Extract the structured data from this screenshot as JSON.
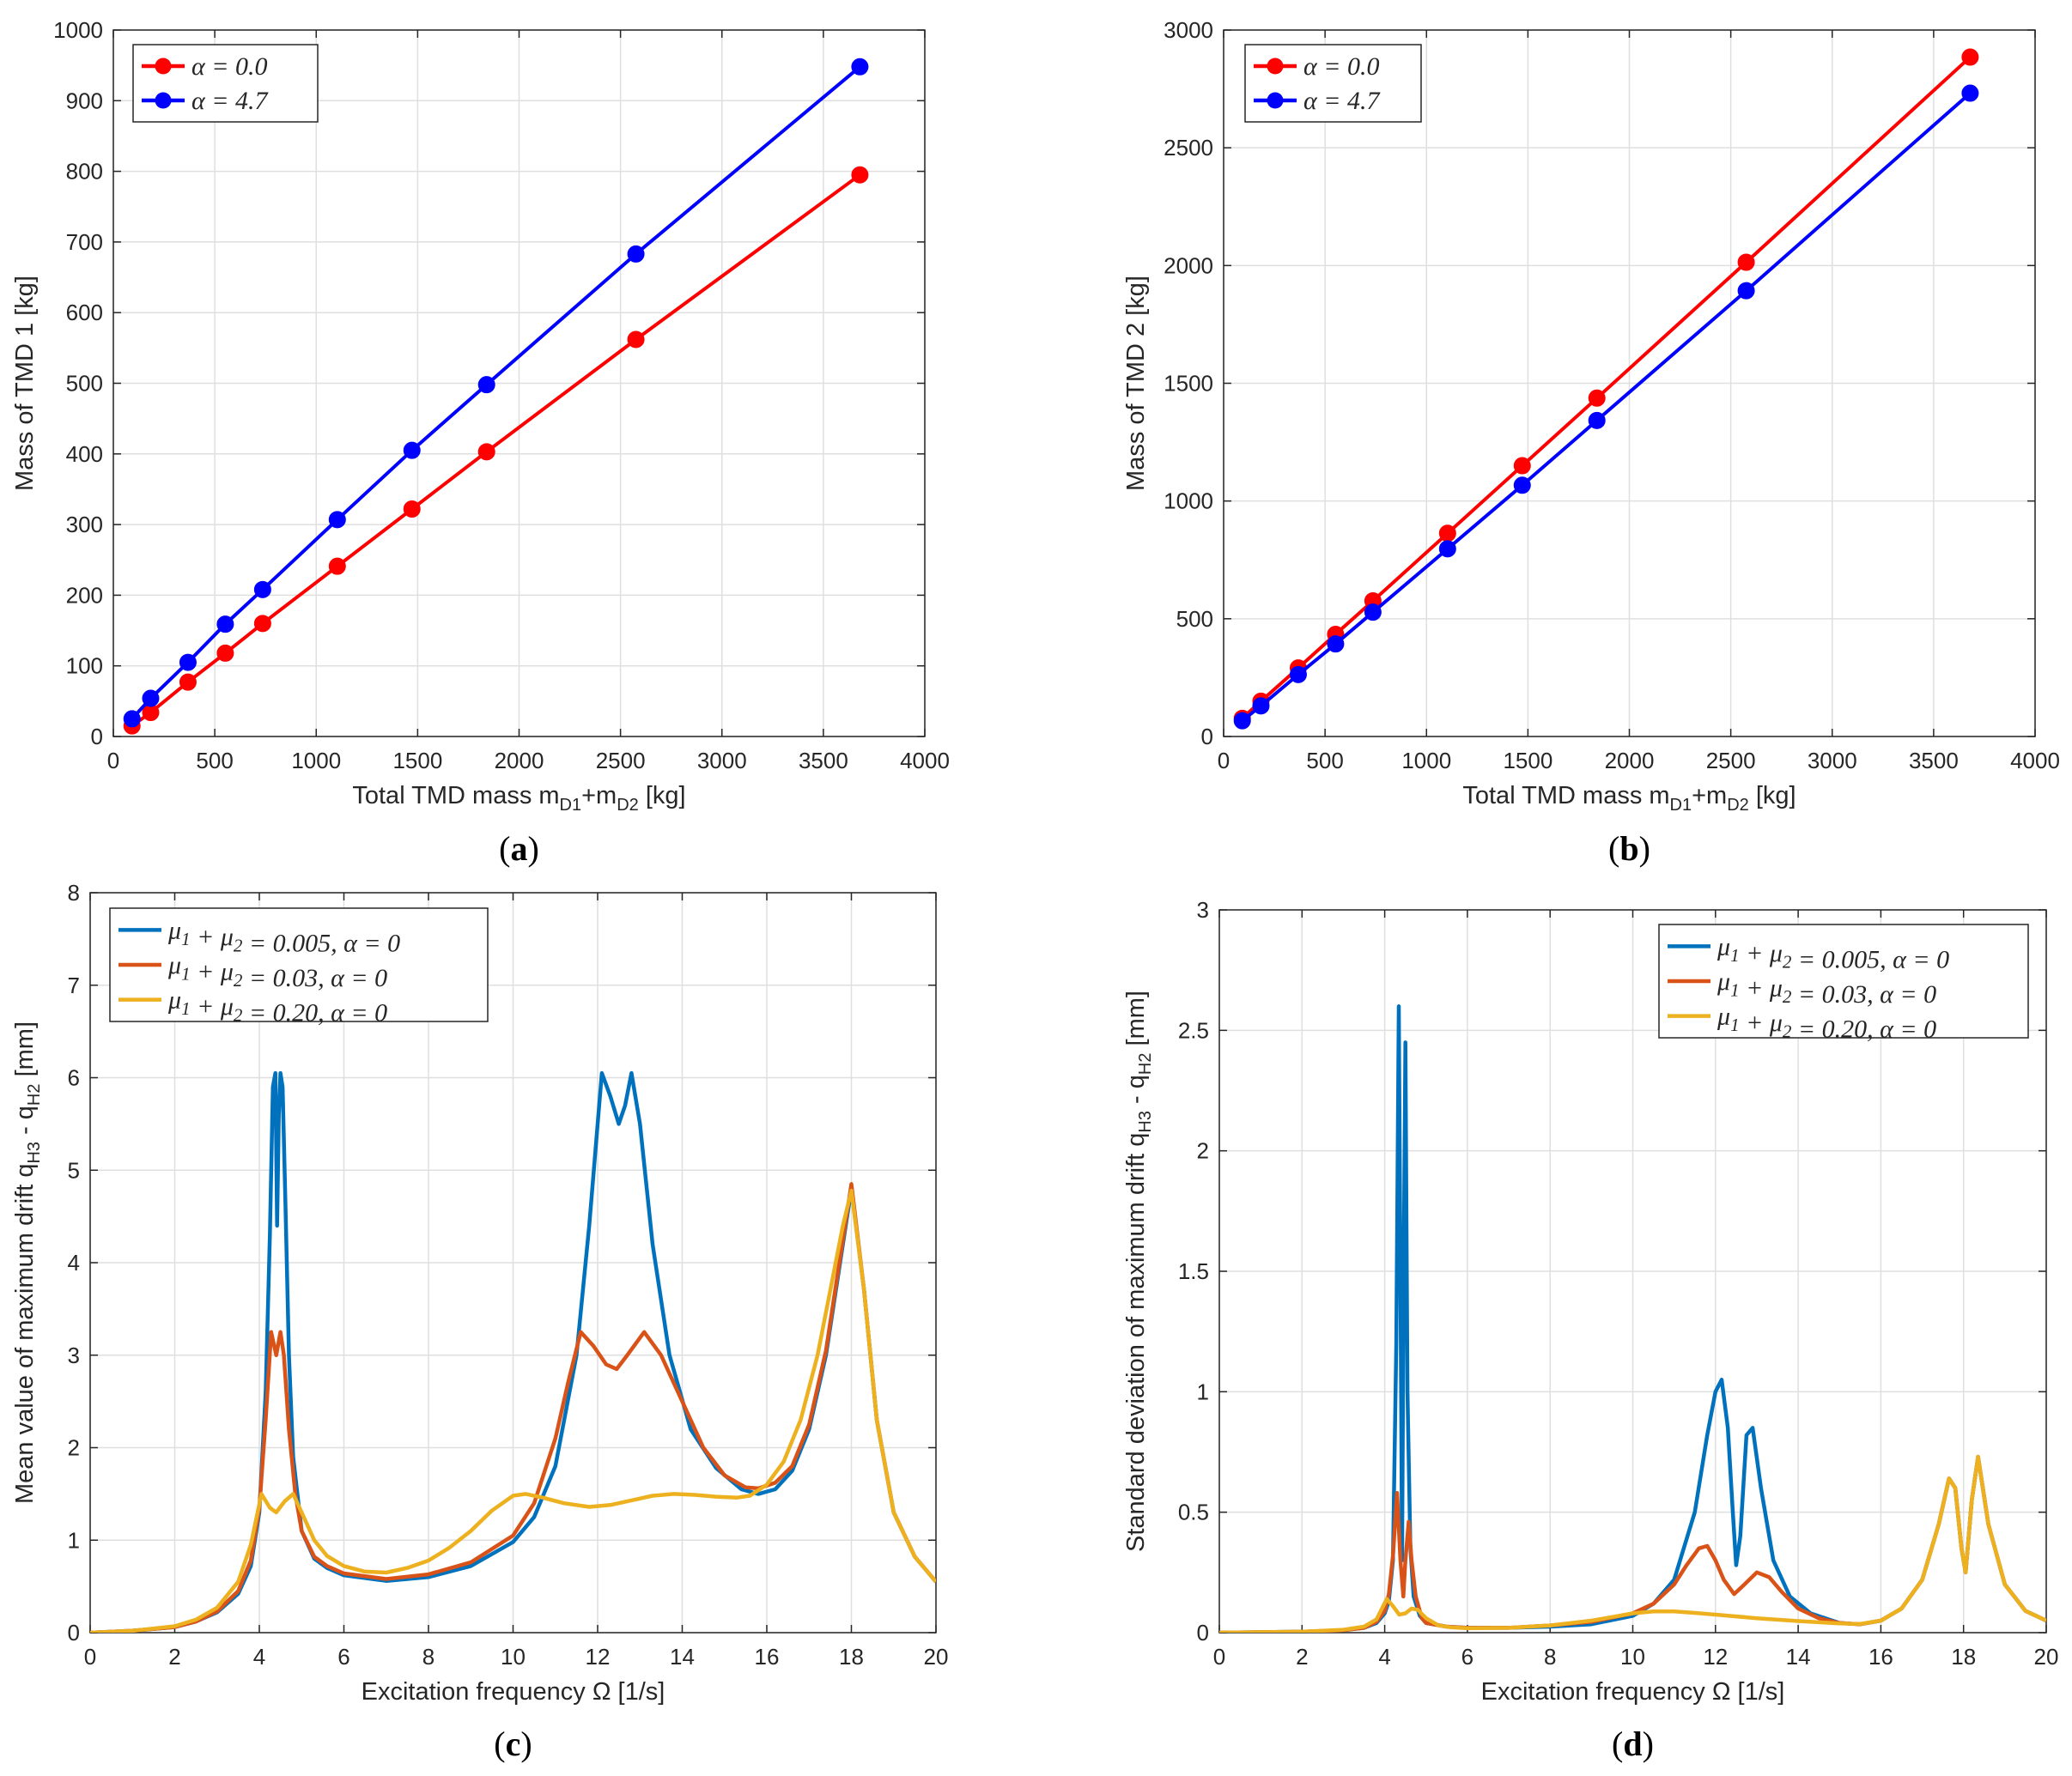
{
  "chart_data": [
    {
      "id": "a",
      "type": "line",
      "caption": "(a)",
      "xlabel": "Total TMD mass m",
      "xlabel_sub1": "D1",
      "xlabel_plus": "+m",
      "xlabel_sub2": "D2",
      "xlabel_unit": " [kg]",
      "ylabel": "Mass of TMD 1 [kg]",
      "xlim": [
        0,
        4000
      ],
      "ylim": [
        0,
        1000
      ],
      "xticks": [
        0,
        500,
        1000,
        1500,
        2000,
        2500,
        3000,
        3500,
        4000
      ],
      "yticks": [
        0,
        100,
        200,
        300,
        400,
        500,
        600,
        700,
        800,
        900,
        1000
      ],
      "grid": true,
      "legend": "top-left",
      "series": [
        {
          "name": "α = 0.0",
          "color": "#ff0000",
          "x": [
            92,
            184,
            368,
            552,
            736,
            1104,
            1472,
            1840,
            2576,
            3680
          ],
          "y": [
            15,
            34,
            77,
            118,
            160,
            241,
            322,
            403,
            562,
            795
          ]
        },
        {
          "name": "α = 4.7",
          "color": "#0000ff",
          "x": [
            92,
            184,
            368,
            552,
            736,
            1104,
            1472,
            1840,
            2576,
            3680
          ],
          "y": [
            25,
            54,
            105,
            159,
            208,
            307,
            405,
            498,
            683,
            948
          ]
        }
      ]
    },
    {
      "id": "b",
      "type": "line",
      "caption": "(b)",
      "xlabel": "Total TMD mass m",
      "xlabel_sub1": "D1",
      "xlabel_plus": "+m",
      "xlabel_sub2": "D2",
      "xlabel_unit": " [kg]",
      "ylabel": "Mass of TMD 2 [kg]",
      "xlim": [
        0,
        4000
      ],
      "ylim": [
        0,
        3000
      ],
      "xticks": [
        0,
        500,
        1000,
        1500,
        2000,
        2500,
        3000,
        3500,
        4000
      ],
      "yticks": [
        0,
        500,
        1000,
        1500,
        2000,
        2500,
        3000
      ],
      "grid": true,
      "legend": "top-left",
      "series": [
        {
          "name": "α = 0.0",
          "color": "#ff0000",
          "x": [
            92,
            184,
            368,
            552,
            736,
            1104,
            1472,
            1840,
            2576,
            3680
          ],
          "y": [
            77,
            150,
            291,
            434,
            576,
            863,
            1150,
            1437,
            2014,
            2885
          ]
        },
        {
          "name": "α = 4.7",
          "color": "#0000ff",
          "x": [
            92,
            184,
            368,
            552,
            736,
            1104,
            1472,
            1840,
            2576,
            3680
          ],
          "y": [
            67,
            130,
            263,
            393,
            528,
            797,
            1067,
            1342,
            1893,
            2732
          ]
        }
      ]
    },
    {
      "id": "c",
      "type": "line",
      "caption": "(c)",
      "xlabel": "Excitation frequency Ω [1/s]",
      "ylabel": "Mean value of maximum drift q",
      "ylabel_sub1": "H3",
      "ylabel_mid": " - q",
      "ylabel_sub2": "H2",
      "ylabel_unit": " [mm]",
      "xlim": [
        0,
        20
      ],
      "ylim": [
        0,
        8
      ],
      "xticks": [
        0,
        2,
        4,
        6,
        8,
        10,
        12,
        14,
        16,
        18,
        20
      ],
      "yticks": [
        0,
        1,
        2,
        3,
        4,
        5,
        6,
        7,
        8
      ],
      "grid": true,
      "legend": "top-left",
      "series": [
        {
          "name": "μ1 + μ2 = 0.005, α = 0",
          "color": "#0072bd",
          "x": [
            0,
            1,
            2,
            2.5,
            3,
            3.5,
            3.8,
            4.0,
            4.15,
            4.25,
            4.32,
            4.38,
            4.42,
            4.46,
            4.5,
            4.55,
            4.62,
            4.7,
            4.8,
            5.0,
            5.3,
            5.6,
            6,
            7,
            8,
            9,
            10,
            10.5,
            11,
            11.5,
            11.8,
            12.1,
            12.3,
            12.5,
            12.65,
            12.8,
            13.0,
            13.3,
            13.7,
            14.2,
            14.8,
            15.4,
            15.8,
            16.2,
            16.6,
            17.0,
            17.4,
            17.7,
            18.0,
            18.3,
            18.6,
            19.0,
            19.5,
            20
          ],
          "y": [
            0,
            0.02,
            0.06,
            0.12,
            0.22,
            0.42,
            0.72,
            1.3,
            2.6,
            4.3,
            5.9,
            6.05,
            4.4,
            5.6,
            6.05,
            5.9,
            4.6,
            3.0,
            1.9,
            1.1,
            0.8,
            0.7,
            0.62,
            0.56,
            0.6,
            0.72,
            0.98,
            1.25,
            1.8,
            3.0,
            4.4,
            6.05,
            5.8,
            5.5,
            5.7,
            6.05,
            5.5,
            4.2,
            3.0,
            2.2,
            1.78,
            1.55,
            1.5,
            1.55,
            1.75,
            2.2,
            3.0,
            3.9,
            4.8,
            3.7,
            2.3,
            1.3,
            0.82,
            0.55
          ]
        },
        {
          "name": "μ1 + μ2 = 0.03, α = 0",
          "color": "#d95319",
          "x": [
            0,
            1,
            2,
            2.5,
            3,
            3.5,
            3.8,
            4.0,
            4.15,
            4.28,
            4.4,
            4.5,
            4.58,
            4.7,
            4.85,
            5.0,
            5.3,
            5.6,
            6,
            7,
            8,
            9,
            10,
            10.5,
            11,
            11.3,
            11.6,
            11.9,
            12.2,
            12.45,
            12.7,
            13.1,
            13.5,
            14.0,
            14.5,
            15.0,
            15.5,
            15.8,
            16.2,
            16.6,
            17.0,
            17.4,
            17.7,
            18.0,
            18.3,
            18.6,
            19.0,
            19.5,
            20
          ],
          "y": [
            0,
            0.02,
            0.06,
            0.12,
            0.23,
            0.45,
            0.78,
            1.35,
            2.3,
            3.25,
            3.0,
            3.25,
            3.0,
            2.2,
            1.5,
            1.1,
            0.82,
            0.72,
            0.64,
            0.58,
            0.63,
            0.76,
            1.05,
            1.4,
            2.1,
            2.7,
            3.25,
            3.1,
            2.9,
            2.85,
            3.0,
            3.25,
            3.0,
            2.5,
            2.0,
            1.7,
            1.57,
            1.56,
            1.62,
            1.8,
            2.25,
            3.05,
            3.95,
            4.85,
            3.7,
            2.3,
            1.3,
            0.82,
            0.55
          ]
        },
        {
          "name": "μ1 + μ2 = 0.20, α = 0",
          "color": "#edb120",
          "x": [
            0,
            1,
            2,
            2.5,
            3,
            3.5,
            3.8,
            4.05,
            4.25,
            4.4,
            4.6,
            4.8,
            5.0,
            5.3,
            5.6,
            6,
            6.5,
            7,
            7.5,
            8,
            8.5,
            9,
            9.5,
            10,
            10.3,
            10.7,
            11.2,
            11.8,
            12.3,
            12.8,
            13.3,
            13.8,
            14.3,
            14.8,
            15.3,
            15.6,
            16,
            16.4,
            16.8,
            17.2,
            17.5,
            17.8,
            18.0,
            18.3,
            18.6,
            19.0,
            19.5,
            20
          ],
          "y": [
            0,
            0.02,
            0.07,
            0.14,
            0.27,
            0.55,
            0.95,
            1.5,
            1.35,
            1.3,
            1.42,
            1.5,
            1.3,
            1.0,
            0.83,
            0.72,
            0.66,
            0.65,
            0.7,
            0.78,
            0.92,
            1.1,
            1.32,
            1.48,
            1.5,
            1.46,
            1.4,
            1.36,
            1.38,
            1.43,
            1.48,
            1.5,
            1.49,
            1.47,
            1.46,
            1.48,
            1.6,
            1.85,
            2.3,
            3.0,
            3.7,
            4.4,
            4.78,
            3.7,
            2.3,
            1.3,
            0.82,
            0.55
          ]
        }
      ]
    },
    {
      "id": "d",
      "type": "line",
      "caption": "(d)",
      "xlabel": "Excitation frequency Ω [1/s]",
      "ylabel": "Standard deviation of maximum drift q",
      "ylabel_sub1": "H3",
      "ylabel_mid": " - q",
      "ylabel_sub2": "H2",
      "ylabel_unit": " [mm]",
      "xlim": [
        0,
        20
      ],
      "ylim": [
        0,
        3
      ],
      "xticks": [
        0,
        2,
        4,
        6,
        8,
        10,
        12,
        14,
        16,
        18,
        20
      ],
      "yticks": [
        0,
        0.5,
        1,
        1.5,
        2,
        2.5,
        3
      ],
      "ytick_labels": [
        "0",
        "0.5",
        "1",
        "1.5",
        "2",
        "2.5",
        "3"
      ],
      "grid": true,
      "legend": "top-right",
      "series": [
        {
          "name": "μ1 + μ2 = 0.005, α = 0",
          "color": "#0072bd",
          "x": [
            0,
            2,
            3,
            3.5,
            3.8,
            4.0,
            4.1,
            4.2,
            4.28,
            4.34,
            4.38,
            4.42,
            4.46,
            4.5,
            4.55,
            4.62,
            4.7,
            4.85,
            5.0,
            5.5,
            6,
            7,
            8,
            9,
            10,
            10.5,
            11,
            11.5,
            11.8,
            12.0,
            12.15,
            12.3,
            12.42,
            12.5,
            12.6,
            12.75,
            12.9,
            13.1,
            13.4,
            13.8,
            14.3,
            15.0,
            15.5,
            16.0,
            16.5,
            17.0,
            17.4,
            17.65,
            17.8,
            17.95,
            18.05,
            18.2,
            18.35,
            18.6,
            19.0,
            19.5,
            20
          ],
          "y": [
            0,
            0.004,
            0.01,
            0.02,
            0.04,
            0.08,
            0.13,
            0.3,
            1.2,
            2.6,
            1.5,
            0.3,
            1.5,
            2.45,
            1.0,
            0.35,
            0.15,
            0.07,
            0.04,
            0.025,
            0.02,
            0.02,
            0.025,
            0.035,
            0.07,
            0.12,
            0.22,
            0.5,
            0.82,
            1.0,
            1.05,
            0.85,
            0.5,
            0.28,
            0.4,
            0.82,
            0.85,
            0.6,
            0.3,
            0.15,
            0.08,
            0.04,
            0.035,
            0.05,
            0.1,
            0.22,
            0.45,
            0.64,
            0.6,
            0.35,
            0.25,
            0.55,
            0.73,
            0.45,
            0.2,
            0.09,
            0.05
          ]
        },
        {
          "name": "μ1 + μ2 = 0.03, α = 0",
          "color": "#d95319",
          "x": [
            0,
            2,
            3,
            3.5,
            3.8,
            4.0,
            4.1,
            4.2,
            4.3,
            4.38,
            4.45,
            4.5,
            4.58,
            4.65,
            4.75,
            4.9,
            5.0,
            5.5,
            6,
            7,
            8,
            9,
            10,
            10.5,
            11,
            11.3,
            11.6,
            11.8,
            12.0,
            12.2,
            12.45,
            12.7,
            13.0,
            13.3,
            13.6,
            14.0,
            14.5,
            15.0,
            15.5,
            16.0,
            16.5,
            17.0,
            17.4,
            17.65,
            17.8,
            17.95,
            18.05,
            18.2,
            18.35,
            18.6,
            19.0,
            19.5,
            20
          ],
          "y": [
            0,
            0.004,
            0.01,
            0.02,
            0.045,
            0.09,
            0.16,
            0.32,
            0.58,
            0.3,
            0.15,
            0.3,
            0.46,
            0.3,
            0.15,
            0.06,
            0.04,
            0.025,
            0.02,
            0.02,
            0.03,
            0.045,
            0.08,
            0.12,
            0.2,
            0.28,
            0.35,
            0.36,
            0.3,
            0.22,
            0.16,
            0.2,
            0.25,
            0.23,
            0.17,
            0.1,
            0.06,
            0.04,
            0.035,
            0.05,
            0.1,
            0.22,
            0.45,
            0.64,
            0.6,
            0.35,
            0.25,
            0.55,
            0.73,
            0.45,
            0.2,
            0.09,
            0.05
          ]
        },
        {
          "name": "μ1 + μ2 = 0.20, α = 0",
          "color": "#edb120",
          "x": [
            0,
            2,
            3,
            3.5,
            3.8,
            4.05,
            4.2,
            4.35,
            4.5,
            4.65,
            4.8,
            5.0,
            5.3,
            5.6,
            6,
            7,
            8,
            9,
            9.5,
            10,
            10.5,
            11,
            11.5,
            12,
            13,
            14,
            15,
            15.5,
            16.0,
            16.5,
            17.0,
            17.4,
            17.65,
            17.8,
            17.95,
            18.05,
            18.2,
            18.35,
            18.6,
            19.0,
            19.5,
            20
          ],
          "y": [
            0,
            0.004,
            0.012,
            0.025,
            0.055,
            0.14,
            0.11,
            0.075,
            0.08,
            0.1,
            0.095,
            0.06,
            0.03,
            0.022,
            0.018,
            0.02,
            0.03,
            0.05,
            0.065,
            0.08,
            0.088,
            0.088,
            0.082,
            0.075,
            0.06,
            0.048,
            0.038,
            0.036,
            0.05,
            0.1,
            0.22,
            0.45,
            0.64,
            0.6,
            0.35,
            0.25,
            0.55,
            0.73,
            0.45,
            0.2,
            0.09,
            0.05
          ]
        }
      ]
    }
  ]
}
